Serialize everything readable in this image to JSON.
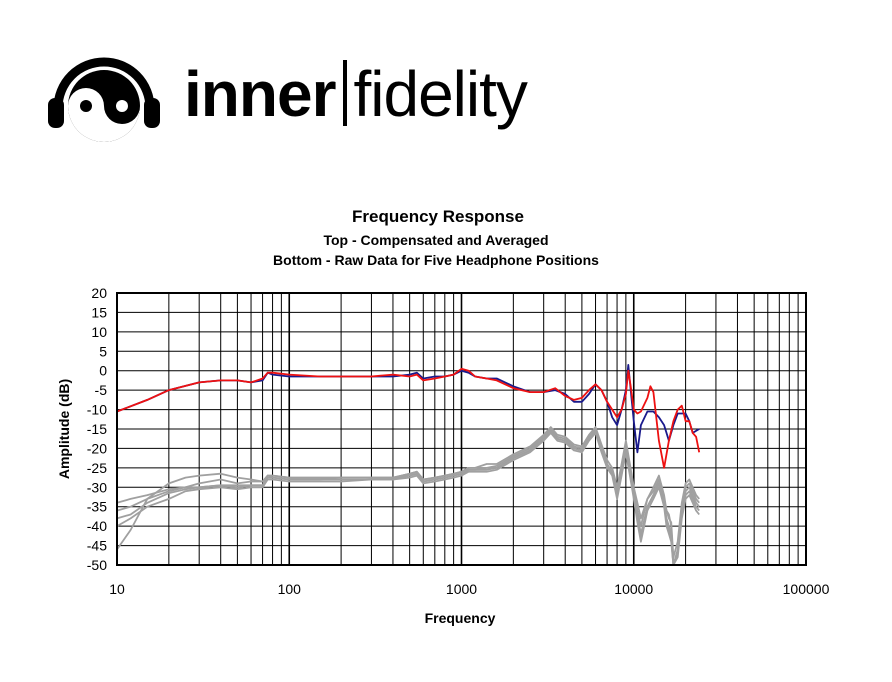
{
  "brand": {
    "name_bold": "inner",
    "name_light": "fidelity",
    "logo_icon": "yin-yang-headphones-icon"
  },
  "chart_data": {
    "type": "line",
    "title": "Frequency Response",
    "subtitle_1": "Top -  Compensated and Averaged",
    "subtitle_2": "Bottom - Raw Data for Five Headphone Positions",
    "xlabel": "Frequency",
    "ylabel": "Amplitude (dB)",
    "x_scale": "log",
    "xlim": [
      10,
      100000
    ],
    "ylim": [
      -50,
      20
    ],
    "grid": true,
    "x_tick_labels": [
      "10",
      "100",
      "1000",
      "10000",
      "100000"
    ],
    "y_ticks": [
      20,
      15,
      10,
      5,
      0,
      -5,
      -10,
      -15,
      -20,
      -25,
      -30,
      -35,
      -40,
      -45,
      -50
    ],
    "colors": {
      "left": "#1a1a8c",
      "right": "#ee1111",
      "raw": "#a0a0a0"
    },
    "series": [
      {
        "color": "#1a1a8c",
        "x": [
          10,
          15,
          20,
          30,
          40,
          50,
          60,
          70,
          75,
          80,
          100,
          150,
          200,
          300,
          400,
          500,
          550,
          600,
          700,
          800,
          900,
          1000,
          1100,
          1200,
          1400,
          1600,
          2000,
          2500,
          3000,
          3500,
          4000,
          4500,
          5000,
          5500,
          6000,
          6500,
          7000,
          7500,
          8000,
          8500,
          9000,
          9300,
          9600,
          10000,
          10500,
          11000,
          12000,
          13000,
          14000,
          15000,
          16000,
          17000,
          18000,
          19000,
          20000,
          21000,
          22000,
          24000
        ],
        "values": [
          -10.5,
          -7.5,
          -5,
          -3,
          -2.5,
          -2.5,
          -3,
          -2.5,
          -0.5,
          -1,
          -1.5,
          -1.5,
          -1.5,
          -1.5,
          -1.5,
          -1,
          -0.5,
          -2,
          -1.5,
          -1.5,
          -1,
          0,
          -0.5,
          -1.5,
          -2,
          -2,
          -4,
          -5.5,
          -5.5,
          -5,
          -6,
          -8,
          -8,
          -6,
          -3.5,
          -5,
          -8,
          -12,
          -14,
          -10,
          -5,
          1.5,
          -5,
          -13,
          -21,
          -14,
          -10.5,
          -10.5,
          -12,
          -14,
          -18,
          -14,
          -11,
          -11,
          -11,
          -13,
          -16,
          -15
        ]
      },
      {
        "color": "#ee1111",
        "x": [
          10,
          15,
          20,
          30,
          40,
          50,
          60,
          70,
          75,
          80,
          100,
          150,
          200,
          300,
          400,
          500,
          550,
          600,
          700,
          800,
          900,
          1000,
          1100,
          1200,
          1400,
          1600,
          2000,
          2500,
          3000,
          3500,
          4000,
          4500,
          5000,
          5500,
          6000,
          6500,
          7000,
          7500,
          8000,
          8500,
          9000,
          9300,
          9600,
          10000,
          10500,
          11000,
          12000,
          12500,
          13000,
          14000,
          15000,
          16000,
          17000,
          18000,
          19000,
          20000,
          21000,
          22000,
          23000,
          24000
        ],
        "values": [
          -10.5,
          -7.5,
          -5,
          -3,
          -2.5,
          -2.5,
          -3,
          -2,
          -0.5,
          -0.5,
          -1,
          -1.5,
          -1.5,
          -1.5,
          -1,
          -1.5,
          -1,
          -2.5,
          -2,
          -1.5,
          -1,
          0.5,
          0,
          -1.5,
          -2,
          -2.5,
          -4.5,
          -5.5,
          -5.5,
          -4.5,
          -6.5,
          -7.5,
          -7,
          -5,
          -3.5,
          -5,
          -8,
          -10,
          -12,
          -10,
          -6,
          0,
          -4,
          -10,
          -11,
          -10.5,
          -7,
          -4,
          -5.5,
          -18,
          -25,
          -18,
          -13,
          -10,
          -9,
          -13,
          -13,
          -16,
          -17,
          -21
        ]
      }
    ],
    "raw_data": {
      "color": "#a0a0a0",
      "count": 5,
      "x": [
        10,
        12,
        15,
        20,
        25,
        30,
        40,
        50,
        60,
        70,
        75,
        80,
        100,
        150,
        200,
        300,
        400,
        500,
        550,
        600,
        700,
        800,
        900,
        1000,
        1100,
        1200,
        1400,
        1600,
        2000,
        2500,
        3000,
        3300,
        3600,
        4000,
        4500,
        5000,
        5500,
        6000,
        6500,
        7000,
        7500,
        8000,
        8500,
        9000,
        9500,
        10000,
        10500,
        11000,
        12000,
        13000,
        14000,
        15000,
        15500,
        16000,
        16500,
        17000,
        18000,
        19000,
        20000,
        21000,
        22000,
        23000,
        24000
      ],
      "values": [
        [
          -34,
          -33,
          -32,
          -30.5,
          -30,
          -30,
          -29.5,
          -29.5,
          -29.5,
          -29.5,
          -27,
          -27,
          -27.5,
          -27.5,
          -27.5,
          -27.5,
          -27.5,
          -26.5,
          -26,
          -28,
          -27.5,
          -27,
          -26.5,
          -26,
          -25,
          -25,
          -25,
          -24.5,
          -22,
          -20,
          -17,
          -15,
          -17,
          -17.5,
          -19.5,
          -20,
          -17,
          -15,
          -20,
          -24,
          -26,
          -31,
          -25,
          -19,
          -25,
          -31,
          -36,
          -40,
          -33,
          -30,
          -27,
          -32,
          -36,
          -38,
          -39,
          -48,
          -44,
          -34,
          -29,
          -28,
          -30,
          -32,
          -33
        ],
        [
          -36,
          -35,
          -33,
          -31,
          -30,
          -29,
          -28,
          -29,
          -28.5,
          -28.5,
          -27,
          -27,
          -27.5,
          -27.5,
          -27.5,
          -27.5,
          -27.5,
          -26.5,
          -26,
          -28,
          -27.5,
          -27,
          -26.5,
          -26,
          -25,
          -25,
          -24,
          -24,
          -21.5,
          -19.5,
          -16.5,
          -14.5,
          -16.5,
          -17,
          -19,
          -19.5,
          -16.5,
          -14.5,
          -19,
          -23,
          -25,
          -30,
          -24,
          -18,
          -24,
          -30,
          -34,
          -38,
          -33,
          -31,
          -28,
          -33,
          -36,
          -37,
          -40,
          -50,
          -46,
          -35,
          -30,
          -29,
          -31,
          -33,
          -34
        ],
        [
          -38,
          -37,
          -34,
          -31.5,
          -30.5,
          -30,
          -29.5,
          -30,
          -29.5,
          -29.5,
          -27.5,
          -27.5,
          -28,
          -28,
          -28,
          -28,
          -28,
          -27,
          -26.5,
          -28.5,
          -28,
          -27.5,
          -27,
          -26.5,
          -25.5,
          -25.5,
          -25.5,
          -25,
          -22.5,
          -20.5,
          -17.5,
          -15.5,
          -17.5,
          -18,
          -20,
          -20.5,
          -17.5,
          -15.5,
          -20.5,
          -24.5,
          -26.5,
          -32,
          -26,
          -20,
          -26,
          -32,
          -37,
          -42,
          -35,
          -32,
          -29,
          -34,
          -38,
          -40,
          -42,
          -50,
          -47,
          -36,
          -31,
          -30,
          -32,
          -34,
          -35
        ],
        [
          -40,
          -38,
          -35,
          -33,
          -31,
          -30.5,
          -30,
          -30.5,
          -30,
          -30,
          -28,
          -28,
          -28.5,
          -28.5,
          -28.5,
          -28,
          -28,
          -27.5,
          -27,
          -29,
          -28.5,
          -28,
          -27.5,
          -27,
          -26,
          -26,
          -26,
          -25.5,
          -23,
          -21,
          -18,
          -16,
          -18,
          -18.5,
          -20.5,
          -21,
          -18,
          -16,
          -21,
          -25,
          -27,
          -33,
          -27,
          -21,
          -27,
          -33,
          -39,
          -44,
          -36,
          -33,
          -30,
          -35,
          -40,
          -42,
          -44,
          -50,
          -48,
          -38,
          -33,
          -32,
          -34,
          -36,
          -37
        ],
        [
          -46,
          -41,
          -33,
          -29,
          -27.5,
          -27,
          -26.5,
          -27.5,
          -28,
          -28.5,
          -27,
          -27.5,
          -28,
          -28,
          -27.5,
          -27.5,
          -27.5,
          -27,
          -26.5,
          -28.5,
          -28,
          -27.5,
          -27,
          -26.5,
          -25.5,
          -25.5,
          -25,
          -25,
          -22.5,
          -20.5,
          -17.5,
          -15.5,
          -17.5,
          -18,
          -20,
          -20.5,
          -17.5,
          -15.5,
          -20.5,
          -24.5,
          -26.5,
          -32,
          -26,
          -20,
          -26,
          -32,
          -38,
          -43,
          -35,
          -32,
          -29,
          -34,
          -39,
          -41,
          -43,
          -50,
          -47,
          -37,
          -32,
          -31,
          -33,
          -35,
          -36
        ]
      ]
    }
  }
}
